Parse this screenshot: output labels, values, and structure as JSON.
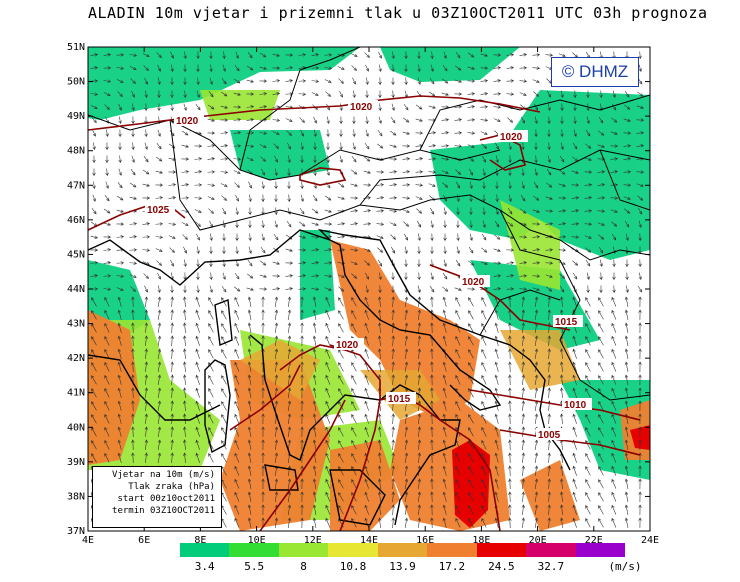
{
  "title": "ALADIN 10m vjetar i prizemni tlak u 03Z10OCT2011 UTC 03h prognoza",
  "copyright": "© DHMZ",
  "lat_labels": [
    "51N",
    "50N",
    "49N",
    "48N",
    "47N",
    "46N",
    "45N",
    "44N",
    "43N",
    "42N",
    "41N",
    "40N",
    "39N",
    "38N",
    "37N"
  ],
  "lon_labels": [
    "4E",
    "6E",
    "8E",
    "10E",
    "12E",
    "14E",
    "16E",
    "18E",
    "20E",
    "22E",
    "24E"
  ],
  "isobars": [
    "1020",
    "1020",
    "1020",
    "1025",
    "1020",
    "1015",
    "1020",
    "1015",
    "1010",
    "1005"
  ],
  "legend": {
    "line1": "Vjetar na 10m (m/s)",
    "line2": "Tlak zraka (hPa)",
    "line3": "start 00z10oct2011",
    "line4": "termin 03Z10OCT2011"
  },
  "scale": {
    "colors": [
      "#00cc7a",
      "#33dd33",
      "#99e633",
      "#e6e633",
      "#e6a833",
      "#f08030",
      "#e60000",
      "#d6006b",
      "#9a00cc"
    ],
    "labels": [
      "3.4",
      "5.5",
      "8",
      "10.8",
      "13.9",
      "17.2",
      "24.5",
      "32.7"
    ],
    "unit": "(m/s)"
  }
}
